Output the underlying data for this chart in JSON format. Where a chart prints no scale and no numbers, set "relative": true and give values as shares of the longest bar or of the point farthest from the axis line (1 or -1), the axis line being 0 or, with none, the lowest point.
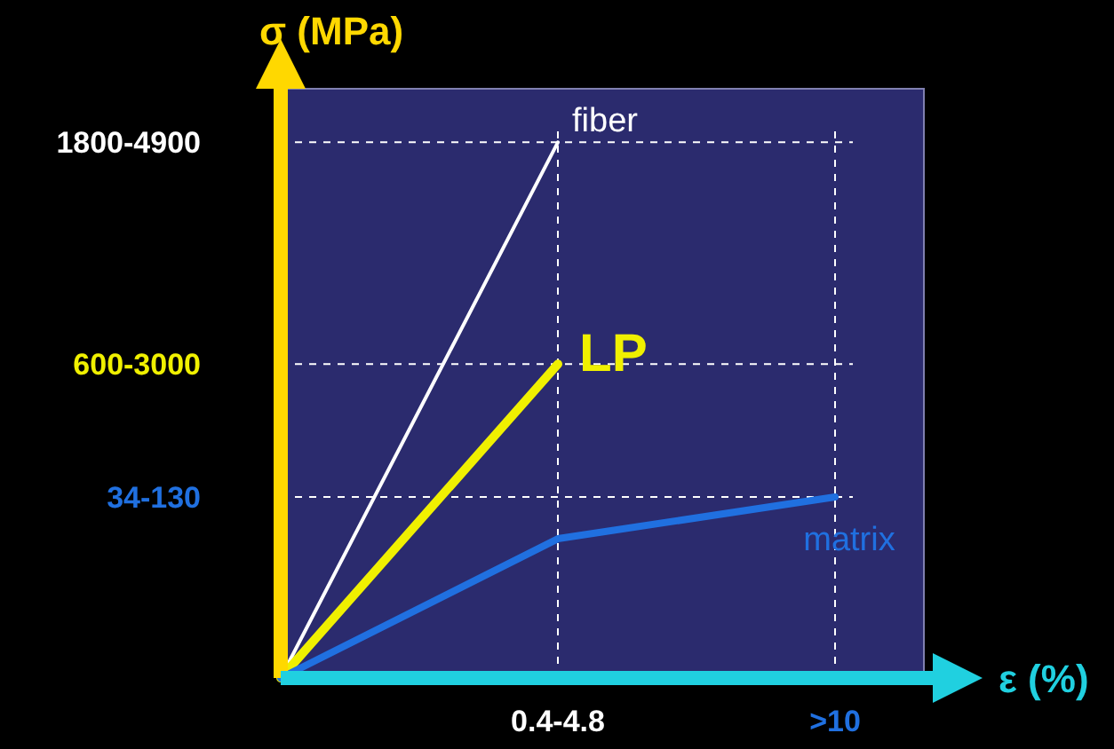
{
  "chart_data": {
    "type": "line",
    "relative": true,
    "xlabel": "ε  (%)",
    "ylabel": "σ  (MPa)",
    "legend": false,
    "marker": "none",
    "grid": "x",
    "categories": [
      null,
      "0.4-4.8",
      ">10"
    ],
    "annotations": [
      "1800-4900",
      "600-3000",
      "34-130"
    ],
    "series": [
      {
        "name": "fiber",
        "color": "#ffffff",
        "values": [
          0,
          1,
          null
        ]
      },
      {
        "name": "LP",
        "color": "#f0f000",
        "values": [
          0,
          0.586,
          null
        ]
      },
      {
        "name": "matrix",
        "color": "#2070e0",
        "values": [
          0,
          0.26,
          0.338
        ]
      }
    ]
  }
}
